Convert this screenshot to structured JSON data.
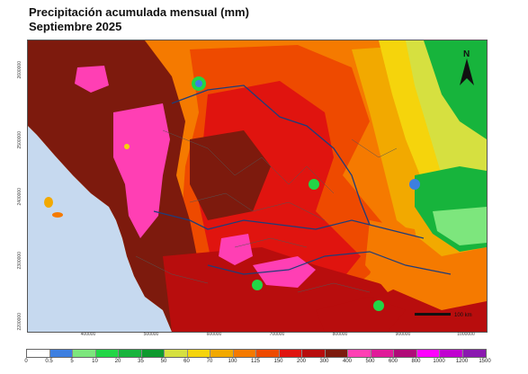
{
  "title": {
    "line1": "Precipitación acumulada mensual (mm)",
    "line2": "Septiembre 2025"
  },
  "map": {
    "north_label": "N",
    "scale_label": "100 km",
    "y_ticks": [
      "2600000",
      "2500000",
      "2400000",
      "2300000",
      "2200000"
    ],
    "x_ticks": [
      "400000",
      "500000",
      "600000",
      "700000",
      "800000",
      "900000",
      "1000000"
    ]
  },
  "legend": {
    "labels": [
      "0",
      "0.5",
      "5",
      "10",
      "20",
      "35",
      "50",
      "60",
      "70",
      "100",
      "125",
      "150",
      "200",
      "300",
      "400",
      "500",
      "600",
      "800",
      "1000",
      "1200",
      "1500"
    ],
    "colors": [
      "#ffffff",
      "#3d7fe0",
      "#7de67d",
      "#22d646",
      "#17b43c",
      "#0e9a2e",
      "#d6e040",
      "#f5d40c",
      "#f2a900",
      "#f57a00",
      "#ee4a00",
      "#e0140f",
      "#b80d0d",
      "#7d1a0d",
      "#ff3fb4",
      "#e01a99",
      "#b00a78",
      "#ff00ff",
      "#c000d0",
      "#8a18b0",
      "#5c1fa0"
    ]
  }
}
